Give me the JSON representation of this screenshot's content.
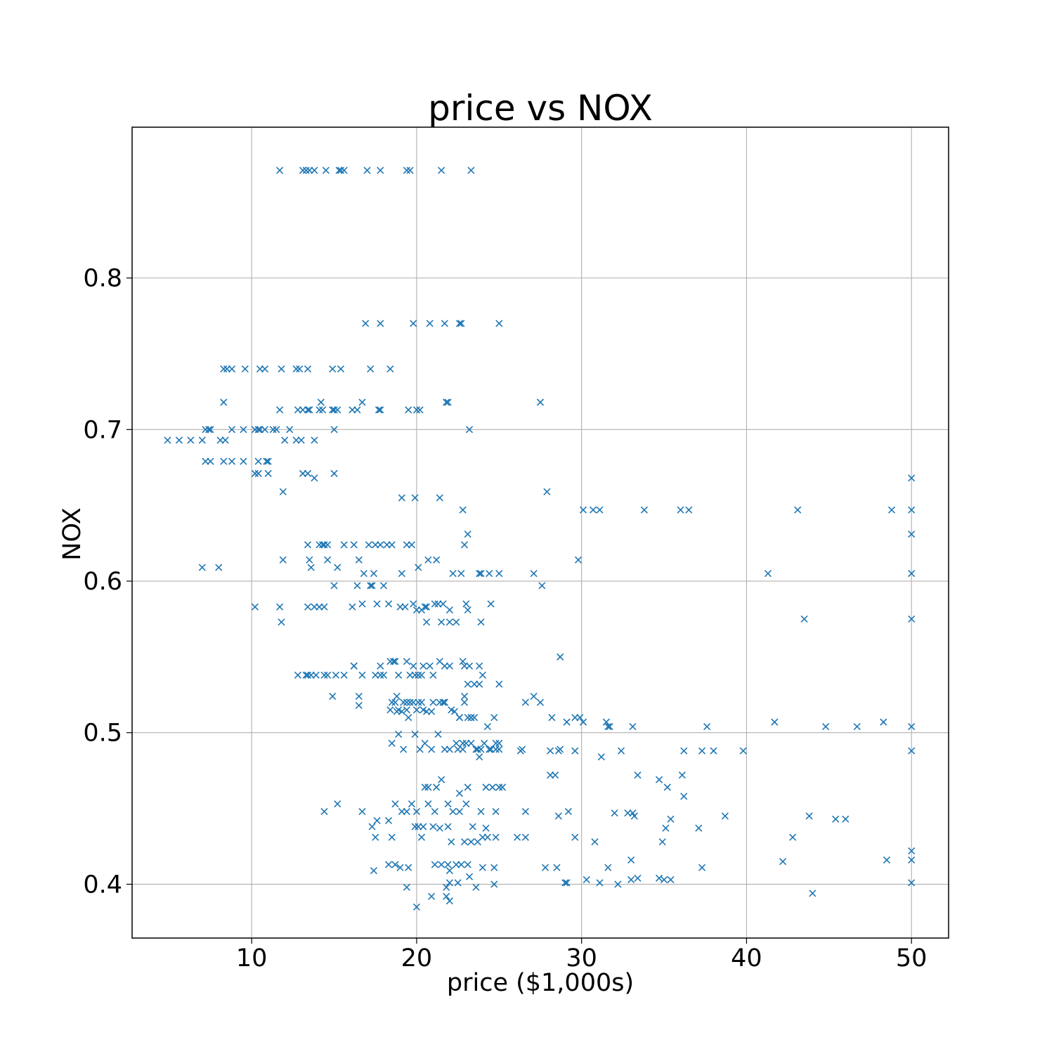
{
  "chart_data": {
    "type": "scatter",
    "title": "price vs NOX",
    "xlabel": "price ($1,000s)",
    "ylabel": "NOX",
    "xlim": [
      2.75,
      52.25
    ],
    "ylim": [
      0.3645,
      0.8995
    ],
    "xticks": [
      10,
      20,
      30,
      40,
      50
    ],
    "xtick_labels": [
      "10",
      "20",
      "30",
      "40",
      "50"
    ],
    "yticks": [
      0.4,
      0.5,
      0.6,
      0.7,
      0.8
    ],
    "ytick_labels": [
      "0.4",
      "0.5",
      "0.6",
      "0.7",
      "0.8"
    ],
    "grid": true,
    "marker": "x",
    "colors": {
      "marker": "#1f77b4",
      "grid": "#b0b0b0",
      "axes": "#000000"
    },
    "series": [
      {
        "x": [
          11.7,
          13.1,
          13.3,
          13.5,
          13.8,
          14.5,
          15.3,
          15.4,
          15.6,
          17.0,
          17.8,
          19.4,
          19.6,
          21.5,
          23.3,
          16.9,
          17.8,
          19.8,
          20.8,
          21.7,
          22.6,
          22.7,
          25.0,
          8.3,
          8.5,
          8.8,
          9.6,
          10.5,
          10.8,
          11.8,
          12.7,
          12.9,
          13.4,
          14.9,
          15.4,
          17.2,
          18.4,
          8.3,
          11.7,
          12.8,
          13.1,
          13.4,
          13.5,
          14.1,
          14.2,
          14.3,
          14.9,
          15.0,
          15.2,
          16.1,
          16.4,
          16.7,
          17.7,
          17.8,
          19.5,
          20.0,
          20.2,
          21.8,
          21.9,
          27.5,
          4.9,
          5.6,
          6.3,
          7.0,
          7.2,
          7.5,
          7.4,
          8.1,
          8.4,
          8.8,
          9.5,
          10.2,
          10.4,
          10.5,
          10.8,
          11.3,
          11.5,
          12.0,
          12.3,
          12.7,
          13.0,
          13.8,
          15.0,
          23.2,
          7.2,
          7.5,
          8.3,
          8.8,
          9.5,
          10.4,
          11.0,
          10.9,
          10.2,
          10.4,
          11.0,
          13.1,
          13.4,
          13.8,
          15.0,
          11.9,
          27.9,
          19.1,
          19.9,
          21.4,
          22.8,
          30.1,
          30.7,
          31.1,
          33.8,
          36.0,
          36.5,
          43.1,
          48.8,
          50.0,
          23.1,
          22.9,
          50.0,
          50.0,
          13.4,
          14.1,
          14.3,
          14.4,
          14.6,
          15.6,
          16.2,
          17.1,
          17.5,
          17.8,
          18.2,
          18.5,
          19.4,
          19.7,
          7.0,
          8.0,
          11.9,
          13.5,
          13.6,
          14.6,
          15.2,
          16.5,
          16.8,
          19.1,
          20.1,
          20.7,
          21.2,
          17.4,
          22.2,
          22.7,
          23.8,
          23.9,
          24.4,
          25.0,
          27.1,
          29.8,
          41.3,
          50.0,
          15.0,
          16.4,
          17.2,
          17.3,
          18.0,
          27.6,
          10.2,
          11.7,
          13.4,
          13.8,
          14.1,
          14.4,
          16.1,
          16.7,
          17.6,
          18.3,
          19.0,
          19.3,
          19.8,
          20.0,
          20.3,
          20.5,
          20.6,
          21.1,
          21.3,
          21.6,
          22.0,
          23.0,
          23.1,
          24.5,
          11.8,
          20.6,
          21.5,
          22.0,
          22.4,
          23.9,
          43.5,
          50.0,
          12.8,
          13.3,
          13.4,
          13.6,
          13.9,
          14.4,
          14.6,
          15.1,
          15.6,
          16.2,
          16.2,
          16.7,
          17.5,
          17.8,
          18.0,
          18.4,
          18.6,
          18.7,
          18.9,
          19.4,
          19.6,
          19.8,
          19.9,
          20.1,
          20.3,
          20.4,
          20.8,
          21.0,
          21.4,
          21.7,
          22.0,
          22.8,
          22.9,
          23.2,
          23.5,
          23.8,
          24.0,
          18.7,
          18.8,
          19.2,
          21.6,
          22.6,
          22.9,
          23.1,
          23.3,
          28.7,
          14.9,
          16.5,
          16.5,
          17.8,
          18.5,
          18.8,
          19.1,
          19.4,
          19.6,
          19.8,
          20.1,
          20.3,
          20.6,
          20.9,
          21.4,
          21.7,
          22.3,
          22.6,
          22.9,
          23.1,
          23.3,
          23.5,
          23.8,
          24.3,
          24.7,
          25.0,
          18.5,
          18.9,
          19.2,
          19.5,
          19.9,
          20.2,
          20.5,
          20.9,
          21.3,
          21.7,
          22.0,
          22.4,
          22.8,
          23.3,
          23.7,
          24.1,
          24.5,
          24.8,
          25.0,
          26.4,
          26.6,
          27.1,
          27.5,
          28.2,
          28.7,
          29.1,
          29.6,
          29.9,
          30.1,
          31.5,
          31.6,
          31.7,
          33.1,
          41.7,
          44.8,
          46.7,
          48.3,
          50.0,
          37.6,
          18.4,
          18.9,
          19.4,
          20.0,
          20.4,
          21.0,
          21.7,
          22.1,
          22.5,
          22.8,
          23.0,
          23.6,
          23.9,
          24.4,
          24.8,
          25.0,
          26.3,
          28.1,
          28.6,
          29.6,
          31.2,
          32.4,
          36.2,
          37.3,
          38.0,
          39.8,
          50.0,
          23.8,
          28.1,
          28.4,
          33.4,
          34.7,
          35.2,
          36.1,
          20.5,
          20.7,
          21.2,
          21.5,
          22.6,
          23.1,
          24.2,
          24.6,
          25.0,
          25.2,
          15.2,
          16.7,
          17.3,
          17.6,
          18.3,
          18.7,
          19.1,
          19.4,
          19.7,
          20.0,
          20.4,
          20.7,
          21.1,
          21.4,
          21.9,
          22.2,
          22.6,
          23.0,
          23.4,
          23.9,
          24.2,
          24.8,
          26.6,
          28.6,
          29.2,
          32.0,
          32.8,
          33.1,
          33.2,
          35.1,
          35.4,
          36.2,
          37.1,
          38.7,
          43.8,
          45.4,
          46.0,
          14.4,
          17.5,
          18.5,
          19.9,
          20.3,
          21.0,
          21.9,
          22.1,
          22.9,
          23.3,
          23.7,
          24.0,
          24.3,
          24.8,
          26.1,
          26.6,
          29.6,
          30.8,
          34.9,
          42.8,
          17.4,
          18.3,
          18.7,
          19.0,
          19.5,
          21.1,
          21.5,
          21.9,
          22.0,
          22.4,
          22.7,
          23.1,
          24.0,
          24.7,
          27.8,
          28.5,
          31.6,
          33.0,
          37.3,
          42.2,
          48.5,
          50.0,
          19.4,
          20.0,
          21.8,
          22.0,
          22.5,
          23.2,
          23.6,
          24.7,
          29.0,
          29.1,
          30.3,
          31.1,
          32.2,
          33.0,
          33.4,
          34.7,
          35.0,
          35.4,
          50.0,
          20.9,
          21.8,
          22.0,
          20.1,
          44.0,
          50.0
        ],
        "y": [
          0.871,
          0.871,
          0.871,
          0.871,
          0.871,
          0.871,
          0.871,
          0.871,
          0.871,
          0.871,
          0.871,
          0.871,
          0.871,
          0.871,
          0.871,
          0.77,
          0.77,
          0.77,
          0.77,
          0.77,
          0.77,
          0.77,
          0.77,
          0.74,
          0.74,
          0.74,
          0.74,
          0.74,
          0.74,
          0.74,
          0.74,
          0.74,
          0.74,
          0.74,
          0.74,
          0.74,
          0.74,
          0.718,
          0.713,
          0.713,
          0.713,
          0.713,
          0.713,
          0.713,
          0.718,
          0.713,
          0.713,
          0.713,
          0.713,
          0.713,
          0.713,
          0.718,
          0.713,
          0.713,
          0.713,
          0.713,
          0.713,
          0.718,
          0.718,
          0.718,
          0.693,
          0.693,
          0.693,
          0.693,
          0.7,
          0.7,
          0.7,
          0.693,
          0.693,
          0.7,
          0.7,
          0.7,
          0.7,
          0.7,
          0.7,
          0.7,
          0.7,
          0.693,
          0.7,
          0.693,
          0.693,
          0.693,
          0.7,
          0.7,
          0.679,
          0.679,
          0.679,
          0.679,
          0.679,
          0.679,
          0.679,
          0.679,
          0.671,
          0.671,
          0.671,
          0.671,
          0.671,
          0.668,
          0.671,
          0.659,
          0.659,
          0.655,
          0.655,
          0.655,
          0.647,
          0.647,
          0.647,
          0.647,
          0.647,
          0.647,
          0.647,
          0.647,
          0.647,
          0.647,
          0.631,
          0.624,
          0.631,
          0.668,
          0.624,
          0.624,
          0.624,
          0.624,
          0.624,
          0.624,
          0.624,
          0.624,
          0.624,
          0.624,
          0.624,
          0.624,
          0.624,
          0.624,
          0.609,
          0.609,
          0.614,
          0.614,
          0.609,
          0.614,
          0.609,
          0.614,
          0.605,
          0.605,
          0.609,
          0.614,
          0.614,
          0.605,
          0.605,
          0.605,
          0.605,
          0.605,
          0.605,
          0.605,
          0.605,
          0.614,
          0.605,
          0.605,
          0.597,
          0.597,
          0.597,
          0.597,
          0.597,
          0.597,
          0.583,
          0.583,
          0.583,
          0.583,
          0.583,
          0.583,
          0.583,
          0.585,
          0.585,
          0.585,
          0.583,
          0.583,
          0.585,
          0.581,
          0.581,
          0.583,
          0.583,
          0.585,
          0.585,
          0.585,
          0.581,
          0.585,
          0.581,
          0.585,
          0.573,
          0.573,
          0.573,
          0.573,
          0.573,
          0.573,
          0.575,
          0.575,
          0.538,
          0.538,
          0.538,
          0.538,
          0.538,
          0.538,
          0.538,
          0.538,
          0.538,
          0.544,
          0.544,
          0.538,
          0.538,
          0.544,
          0.538,
          0.547,
          0.547,
          0.547,
          0.538,
          0.547,
          0.538,
          0.544,
          0.538,
          0.538,
          0.538,
          0.544,
          0.544,
          0.538,
          0.547,
          0.544,
          0.544,
          0.547,
          0.544,
          0.544,
          0.532,
          0.544,
          0.538,
          0.52,
          0.514,
          0.52,
          0.52,
          0.51,
          0.52,
          0.51,
          0.51,
          0.55,
          0.524,
          0.524,
          0.518,
          0.538,
          0.52,
          0.524,
          0.514,
          0.52,
          0.52,
          0.52,
          0.52,
          0.52,
          0.514,
          0.514,
          0.52,
          0.52,
          0.514,
          0.51,
          0.524,
          0.532,
          0.51,
          0.51,
          0.532,
          0.504,
          0.51,
          0.532,
          0.493,
          0.499,
          0.489,
          0.51,
          0.499,
          0.489,
          0.493,
          0.489,
          0.499,
          0.489,
          0.489,
          0.493,
          0.489,
          0.493,
          0.489,
          0.493,
          0.489,
          0.489,
          0.493,
          0.489,
          0.52,
          0.524,
          0.52,
          0.51,
          0.489,
          0.507,
          0.51,
          0.51,
          0.507,
          0.507,
          0.504,
          0.504,
          0.504,
          0.507,
          0.504,
          0.504,
          0.507,
          0.504,
          0.504,
          0.515,
          0.515,
          0.515,
          0.515,
          0.515,
          0.52,
          0.52,
          0.515,
          0.489,
          0.493,
          0.493,
          0.489,
          0.489,
          0.489,
          0.493,
          0.489,
          0.488,
          0.488,
          0.488,
          0.488,
          0.484,
          0.488,
          0.488,
          0.488,
          0.488,
          0.488,
          0.488,
          0.484,
          0.472,
          0.472,
          0.472,
          0.469,
          0.464,
          0.472,
          0.464,
          0.464,
          0.464,
          0.469,
          0.46,
          0.464,
          0.464,
          0.464,
          0.464,
          0.464,
          0.453,
          0.448,
          0.438,
          0.442,
          0.442,
          0.453,
          0.448,
          0.448,
          0.453,
          0.448,
          0.438,
          0.453,
          0.448,
          0.437,
          0.453,
          0.448,
          0.448,
          0.453,
          0.438,
          0.448,
          0.437,
          0.448,
          0.448,
          0.445,
          0.448,
          0.447,
          0.447,
          0.447,
          0.445,
          0.437,
          0.443,
          0.458,
          0.437,
          0.445,
          0.445,
          0.443,
          0.443,
          0.448,
          0.431,
          0.431,
          0.438,
          0.431,
          0.438,
          0.438,
          0.428,
          0.428,
          0.428,
          0.428,
          0.431,
          0.431,
          0.431,
          0.431,
          0.431,
          0.431,
          0.428,
          0.428,
          0.431,
          0.409,
          0.413,
          0.413,
          0.411,
          0.411,
          0.413,
          0.413,
          0.413,
          0.409,
          0.413,
          0.413,
          0.413,
          0.411,
          0.411,
          0.411,
          0.411,
          0.411,
          0.416,
          0.411,
          0.415,
          0.416,
          0.422,
          0.398,
          0.385,
          0.398,
          0.401,
          0.401,
          0.405,
          0.398,
          0.4,
          0.401,
          0.401,
          0.403,
          0.401,
          0.4,
          0.403,
          0.404,
          0.404,
          0.403,
          0.403,
          0.401,
          0.392,
          0.392,
          0.389,
          0.438,
          0.394,
          0.416
        ]
      }
    ]
  }
}
